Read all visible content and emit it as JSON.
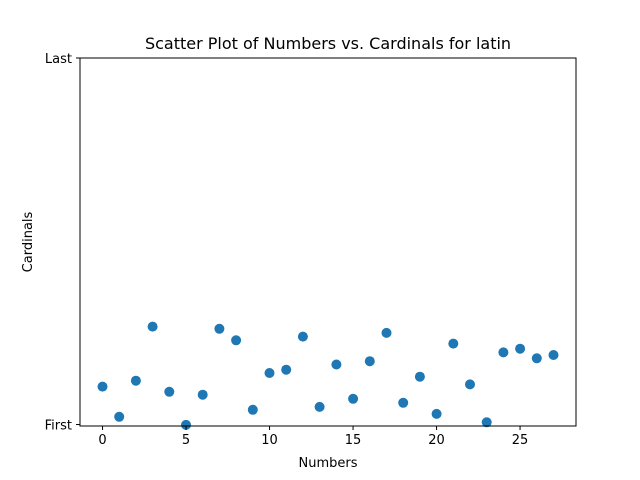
{
  "chart_data": {
    "type": "scatter",
    "title": "Scatter Plot of Numbers vs. Cardinals for latin",
    "xlabel": "Numbers",
    "ylabel": "Cardinals",
    "xlim": [
      -1.35,
      28.35
    ],
    "ylim": [
      0,
      1
    ],
    "x_ticks": [
      {
        "value": 0,
        "label": "0"
      },
      {
        "value": 5,
        "label": "5"
      },
      {
        "value": 10,
        "label": "10"
      },
      {
        "value": 15,
        "label": "15"
      },
      {
        "value": 20,
        "label": "20"
      },
      {
        "value": 25,
        "label": "25"
      }
    ],
    "y_ticks": [
      {
        "value": 0.004,
        "label": "First"
      },
      {
        "value": 1,
        "label": "Last"
      }
    ],
    "grid": false,
    "marker_color": "#1f77b4",
    "series": [
      {
        "x": [
          0,
          1,
          2,
          3,
          4,
          5,
          6,
          7,
          8,
          9,
          10,
          11,
          12,
          13,
          14,
          15,
          16,
          17,
          18,
          19,
          20,
          21,
          22,
          23,
          24,
          25,
          26,
          27
        ],
        "y": [
          0.107,
          0.025,
          0.123,
          0.27,
          0.093,
          0.003,
          0.085,
          0.264,
          0.233,
          0.044,
          0.144,
          0.153,
          0.243,
          0.052,
          0.167,
          0.074,
          0.176,
          0.253,
          0.063,
          0.134,
          0.033,
          0.224,
          0.113,
          0.01,
          0.2,
          0.21,
          0.184,
          0.193
        ]
      }
    ]
  }
}
